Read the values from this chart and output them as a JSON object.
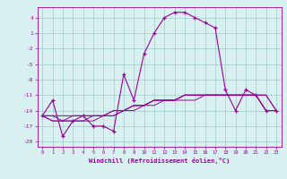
{
  "hours": [
    0,
    1,
    2,
    3,
    4,
    5,
    6,
    7,
    8,
    9,
    10,
    11,
    12,
    13,
    14,
    15,
    16,
    17,
    18,
    19,
    20,
    21,
    22,
    23
  ],
  "windchill": [
    -15,
    -12,
    -19,
    -16,
    -15,
    -17,
    -17,
    -18,
    -7,
    -12,
    -3,
    1,
    4,
    5,
    5,
    4,
    3,
    2,
    -10,
    -14,
    -10,
    -11,
    -14,
    -14
  ],
  "temp": [
    -15,
    -15,
    -15,
    -15,
    -15,
    -15,
    -15,
    -15,
    -14,
    -13,
    -13,
    -12,
    -12,
    -12,
    -11,
    -11,
    -11,
    -11,
    -11,
    -11,
    -11,
    -11,
    -11,
    -14
  ],
  "line1": [
    -15,
    -16,
    -16,
    -16,
    -16,
    -16,
    -15,
    -15,
    -14,
    -14,
    -13,
    -13,
    -12,
    -12,
    -12,
    -12,
    -11,
    -11,
    -11,
    -11,
    -11,
    -11,
    -11,
    -14
  ],
  "line2": [
    -15,
    -16,
    -16,
    -16,
    -16,
    -15,
    -15,
    -14,
    -14,
    -13,
    -13,
    -12,
    -12,
    -12,
    -11,
    -11,
    -11,
    -11,
    -11,
    -11,
    -11,
    -11,
    -14,
    -14
  ],
  "line3": [
    -15,
    -15,
    -16,
    -15,
    -15,
    -15,
    -15,
    -14,
    -14,
    -13,
    -13,
    -12,
    -12,
    -12,
    -11,
    -11,
    -11,
    -11,
    -11,
    -11,
    -11,
    -11,
    -14,
    -14
  ],
  "bg_color": "#d8f0f0",
  "grid_color": "#a0c8c8",
  "line_color": "#990099",
  "xlabel": "Windchill (Refroidissement éolien,°C)",
  "yticks": [
    4,
    1,
    -2,
    -5,
    -8,
    -11,
    -14,
    -17,
    -20
  ],
  "xticks": [
    0,
    1,
    2,
    3,
    4,
    5,
    6,
    7,
    8,
    9,
    10,
    11,
    12,
    13,
    14,
    15,
    16,
    17,
    18,
    19,
    20,
    21,
    22,
    23
  ],
  "ylim": [
    -21,
    6
  ],
  "xlim": [
    -0.5,
    23.5
  ]
}
